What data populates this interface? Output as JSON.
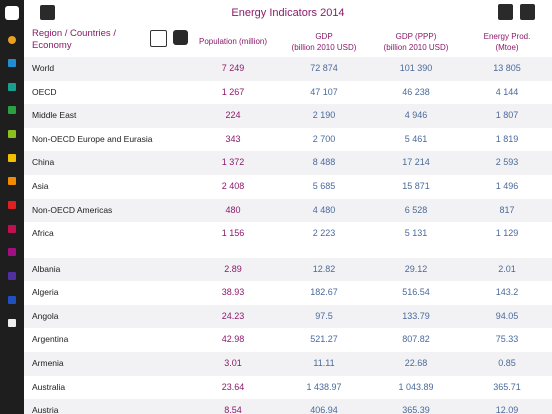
{
  "header": {
    "title": "Energy Indicators 2014"
  },
  "table": {
    "columns": [
      "Region / Countries / Economy",
      "Population (million)",
      "GDP\n(billion 2010 USD)",
      "GDP (PPP)\n(billion 2010 USD)",
      "Energy Prod.\n(Mtoe)"
    ],
    "regions": [
      [
        "World",
        "7 249",
        "72 874",
        "101 390",
        "13 805"
      ],
      [
        "OECD",
        "1 267",
        "47 107",
        "46 238",
        "4 144"
      ],
      [
        "Middle East",
        "224",
        "2 190",
        "4 946",
        "1 807"
      ],
      [
        "Non-OECD Europe and Eurasia",
        "343",
        "2 700",
        "5 461",
        "1 819"
      ],
      [
        "China",
        "1 372",
        "8 488",
        "17 214",
        "2 593"
      ],
      [
        "Asia",
        "2 408",
        "5 685",
        "15 871",
        "1 496"
      ],
      [
        "Non-OECD Americas",
        "480",
        "4 480",
        "6 528",
        "817"
      ],
      [
        "Africa",
        "1 156",
        "2 223",
        "5 131",
        "1 129"
      ]
    ],
    "countries": [
      [
        "Albania",
        "2.89",
        "12.82",
        "29.12",
        "2.01"
      ],
      [
        "Algeria",
        "38.93",
        "182.67",
        "516.54",
        "143.2"
      ],
      [
        "Angola",
        "24.23",
        "97.5",
        "133.79",
        "94.05"
      ],
      [
        "Argentina",
        "42.98",
        "521.27",
        "807.82",
        "75.33"
      ],
      [
        "Armenia",
        "3.01",
        "11.11",
        "22.68",
        "0.85"
      ],
      [
        "Australia",
        "23.64",
        "1 438.97",
        "1 043.89",
        "365.71"
      ],
      [
        "Austria",
        "8.54",
        "406.94",
        "365.39",
        "12.09"
      ]
    ]
  }
}
